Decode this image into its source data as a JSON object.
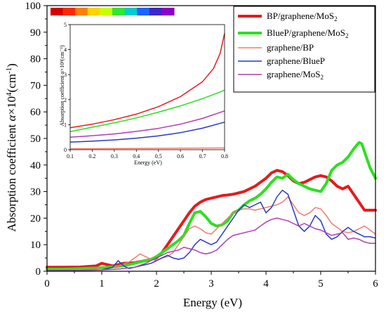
{
  "chart_data": [
    {
      "type": "line",
      "xlabel": "Energy (eV)",
      "ylabel_main": "Absorption coefficient ",
      "ylabel_alpha": "α",
      "ylabel_times": "×10",
      "ylabel_exp": "4",
      "ylabel_unit": "(cm",
      "ylabel_unit_exp": "-1",
      "ylabel_close": ")",
      "xlim": [
        0,
        6
      ],
      "ylim": [
        0,
        100
      ],
      "x_ticks": [
        "0",
        "1",
        "2",
        "3",
        "4",
        "5",
        "6"
      ],
      "y_ticks": [
        "0",
        "10",
        "20",
        "30",
        "40",
        "50",
        "60",
        "70",
        "80",
        "90",
        "100"
      ],
      "legend_position": "top-right",
      "spectrum_bar_colors": [
        "#d40000",
        "#ff2a00",
        "#ff7f00",
        "#ffd200",
        "#c8ff00",
        "#32e632",
        "#00cccc",
        "#1e64ff",
        "#3c28c8",
        "#8c00c8"
      ],
      "series": [
        {
          "legend_main": "BP/graphene/MoS",
          "legend_sub": "2",
          "color": "#e8191b",
          "width": 4,
          "x": [
            0,
            0.3,
            0.6,
            0.9,
            1.0,
            1.2,
            1.4,
            1.6,
            1.8,
            2.0,
            2.1,
            2.2,
            2.3,
            2.4,
            2.5,
            2.6,
            2.7,
            2.8,
            2.9,
            3.0,
            3.1,
            3.2,
            3.3,
            3.4,
            3.5,
            3.6,
            3.7,
            3.8,
            3.9,
            4.0,
            4.1,
            4.2,
            4.3,
            4.4,
            4.5,
            4.6,
            4.7,
            4.8,
            4.9,
            5.0,
            5.1,
            5.2,
            5.3,
            5.4,
            5.5,
            5.6,
            5.7,
            5.8,
            5.9,
            6.0
          ],
          "y": [
            1.5,
            1.5,
            1.6,
            2.0,
            3.0,
            2.0,
            3.0,
            3.2,
            4.0,
            5.0,
            7.0,
            10.0,
            13.0,
            16.0,
            19.0,
            22.0,
            24.5,
            26.0,
            27.0,
            27.5,
            28.0,
            28.5,
            28.7,
            29.0,
            29.5,
            30.0,
            31.0,
            32.0,
            33.5,
            35.0,
            37.0,
            38.0,
            37.5,
            36.0,
            34.0,
            33.0,
            33.5,
            34.5,
            35.5,
            36.0,
            35.5,
            34.0,
            32.0,
            31.0,
            32.0,
            29.0,
            26.0,
            23.0,
            23.0,
            23.0
          ]
        },
        {
          "legend_main": "BlueP/graphene/MoS",
          "legend_sub": "2",
          "color": "#2be01f",
          "width": 4,
          "x": [
            0,
            0.3,
            0.6,
            0.9,
            1.1,
            1.3,
            1.5,
            1.7,
            1.9,
            2.0,
            2.1,
            2.2,
            2.3,
            2.4,
            2.5,
            2.6,
            2.7,
            2.8,
            2.9,
            3.0,
            3.1,
            3.2,
            3.3,
            3.4,
            3.5,
            3.6,
            3.7,
            3.8,
            3.9,
            4.0,
            4.1,
            4.2,
            4.3,
            4.4,
            4.5,
            4.6,
            4.7,
            4.8,
            4.9,
            5.0,
            5.1,
            5.2,
            5.3,
            5.4,
            5.5,
            5.6,
            5.7,
            5.75,
            5.8,
            5.9,
            6.0
          ],
          "y": [
            0.8,
            0.8,
            1.0,
            1.2,
            1.5,
            1.8,
            2.5,
            3.5,
            4.5,
            5.5,
            7.0,
            8.5,
            10.0,
            11.5,
            13.5,
            18.0,
            22.0,
            22.5,
            20.5,
            18.0,
            17.0,
            17.5,
            19.0,
            22.0,
            23.0,
            25.0,
            26.5,
            27.5,
            29.0,
            31.0,
            33.5,
            35.5,
            35.0,
            36.5,
            34.5,
            33.0,
            32.0,
            31.0,
            30.5,
            30.0,
            33.0,
            38.0,
            40.0,
            41.0,
            43.0,
            46.0,
            48.5,
            48.0,
            45.0,
            39.0,
            35.0
          ]
        },
        {
          "legend_main": "graphene/BP",
          "legend_sub": "",
          "color": "#f07a6e",
          "width": 1.5,
          "x": [
            0,
            0.5,
            0.9,
            1.0,
            1.1,
            1.3,
            1.5,
            1.7,
            1.8,
            1.9,
            2.0,
            2.1,
            2.2,
            2.3,
            2.4,
            2.5,
            2.6,
            2.7,
            2.8,
            2.9,
            3.0,
            3.1,
            3.2,
            3.3,
            3.4,
            3.5,
            3.6,
            3.7,
            3.8,
            3.9,
            4.0,
            4.1,
            4.2,
            4.3,
            4.4,
            4.5,
            4.6,
            4.7,
            4.8,
            4.9,
            5.0,
            5.1,
            5.2,
            5.3,
            5.4,
            5.5,
            5.6,
            5.7,
            5.8,
            5.9,
            6.0
          ],
          "y": [
            0.5,
            0.5,
            0.8,
            1.5,
            0.8,
            2.0,
            3.5,
            6.5,
            5.5,
            4.5,
            4.0,
            5.0,
            5.5,
            7.0,
            10.0,
            13.0,
            16.0,
            17.0,
            16.0,
            14.5,
            14.0,
            16.0,
            18.0,
            20.0,
            22.0,
            23.0,
            23.5,
            23.5,
            23.0,
            23.5,
            24.0,
            24.5,
            25.0,
            26.0,
            28.0,
            25.0,
            22.0,
            21.0,
            22.0,
            24.0,
            23.5,
            21.0,
            18.0,
            16.5,
            15.0,
            14.5,
            15.0,
            16.0,
            17.0,
            15.5,
            14.0
          ]
        },
        {
          "legend_main": "graphene/BlueP",
          "legend_sub": "",
          "color": "#2739c2",
          "width": 1.5,
          "x": [
            0,
            0.5,
            1.0,
            1.2,
            1.3,
            1.4,
            1.5,
            1.6,
            1.7,
            1.8,
            1.9,
            2.0,
            2.1,
            2.2,
            2.3,
            2.4,
            2.5,
            2.6,
            2.7,
            2.8,
            2.9,
            3.0,
            3.1,
            3.2,
            3.3,
            3.4,
            3.5,
            3.6,
            3.7,
            3.8,
            3.9,
            4.0,
            4.1,
            4.2,
            4.3,
            4.4,
            4.5,
            4.6,
            4.7,
            4.8,
            4.9,
            5.0,
            5.1,
            5.2,
            5.3,
            5.4,
            5.5,
            5.6,
            5.7,
            5.8,
            5.9,
            6.0
          ],
          "y": [
            0.3,
            0.3,
            0.5,
            1.5,
            4.0,
            2.0,
            1.0,
            1.5,
            2.0,
            2.5,
            3.0,
            4.0,
            5.0,
            6.0,
            5.0,
            4.5,
            5.0,
            7.0,
            10.0,
            12.0,
            11.0,
            10.0,
            11.0,
            14.0,
            17.0,
            20.0,
            23.0,
            25.0,
            24.0,
            25.0,
            26.0,
            22.0,
            24.0,
            28.0,
            30.5,
            29.0,
            23.0,
            17.0,
            15.0,
            17.0,
            21.0,
            19.0,
            14.0,
            12.0,
            13.0,
            15.0,
            16.5,
            15.0,
            14.0,
            13.0,
            13.0,
            12.5
          ]
        },
        {
          "legend_main": "graphene/MoS",
          "legend_sub": "2",
          "color": "#b03cb0",
          "width": 1.5,
          "x": [
            0,
            0.5,
            1.0,
            1.3,
            1.6,
            1.8,
            2.0,
            2.1,
            2.2,
            2.3,
            2.4,
            2.5,
            2.6,
            2.7,
            2.8,
            2.9,
            3.0,
            3.1,
            3.2,
            3.3,
            3.4,
            3.5,
            3.6,
            3.7,
            3.8,
            3.9,
            4.0,
            4.1,
            4.2,
            4.3,
            4.4,
            4.5,
            4.6,
            4.7,
            4.8,
            4.9,
            5.0,
            5.1,
            5.2,
            5.3,
            5.4,
            5.5,
            5.6,
            5.7,
            5.8,
            5.9,
            6.0
          ],
          "y": [
            0.3,
            0.3,
            0.5,
            0.8,
            1.5,
            3.0,
            5.0,
            6.0,
            7.0,
            7.5,
            8.0,
            9.0,
            8.5,
            8.0,
            7.0,
            6.5,
            7.0,
            8.0,
            10.0,
            12.0,
            13.5,
            14.0,
            14.5,
            15.0,
            15.5,
            17.0,
            18.5,
            19.5,
            20.0,
            19.5,
            19.0,
            18.0,
            17.0,
            18.0,
            17.0,
            16.0,
            15.5,
            14.5,
            13.5,
            14.0,
            14.5,
            12.0,
            12.5,
            12.0,
            11.0,
            10.5,
            10.5
          ]
        }
      ]
    },
    {
      "type": "line",
      "xlabel": "Energy (eV)",
      "ylabel": "Absorption coefficient α×10⁴(cm⁻¹)",
      "xlim": [
        0.1,
        0.8
      ],
      "ylim": [
        0,
        5
      ],
      "x_ticks": [
        "0.1",
        "0.2",
        "0.3",
        "0.4",
        "0.5",
        "0.6",
        "0.7",
        "0.8"
      ],
      "y_ticks": [
        "0",
        "1",
        "2",
        "3",
        "4",
        "5"
      ],
      "series": [
        {
          "color": "#e8191b",
          "x": [
            0.1,
            0.2,
            0.3,
            0.4,
            0.5,
            0.6,
            0.7,
            0.75,
            0.78,
            0.8
          ],
          "y": [
            0.88,
            1.02,
            1.2,
            1.42,
            1.72,
            2.12,
            2.72,
            3.25,
            3.85,
            4.65
          ]
        },
        {
          "color": "#2be01f",
          "x": [
            0.1,
            0.2,
            0.3,
            0.4,
            0.5,
            0.6,
            0.7,
            0.8
          ],
          "y": [
            0.72,
            0.9,
            1.07,
            1.27,
            1.5,
            1.75,
            2.04,
            2.38
          ]
        },
        {
          "color": "#b03cb0",
          "x": [
            0.1,
            0.2,
            0.3,
            0.4,
            0.5,
            0.6,
            0.7,
            0.8
          ],
          "y": [
            0.5,
            0.56,
            0.63,
            0.73,
            0.85,
            1.02,
            1.25,
            1.55
          ]
        },
        {
          "color": "#2739c2",
          "x": [
            0.1,
            0.2,
            0.3,
            0.4,
            0.5,
            0.6,
            0.7,
            0.8
          ],
          "y": [
            0.3,
            0.34,
            0.39,
            0.46,
            0.55,
            0.68,
            0.86,
            1.1
          ]
        },
        {
          "color": "#f07a6e",
          "x": [
            0.1,
            0.4,
            0.8
          ],
          "y": [
            0.04,
            0.05,
            0.07
          ]
        }
      ]
    }
  ]
}
